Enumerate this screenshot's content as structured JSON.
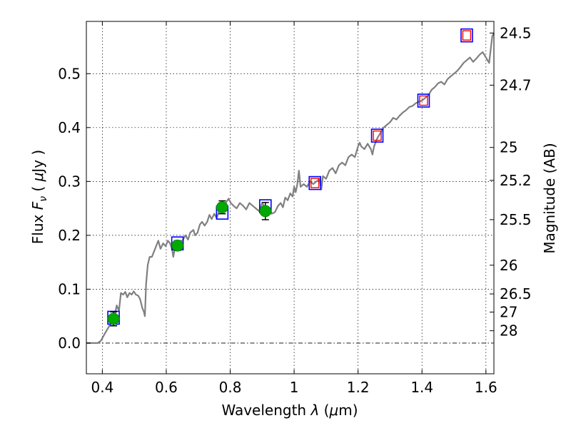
{
  "chart_data": {
    "type": "scatter",
    "xlabel": "Wavelength  λ (μm)",
    "ylabel": "Flux  F_ν  ( μJy )",
    "y2label": "Magnitude (AB)",
    "xlim": [
      0.35,
      1.625
    ],
    "ylim": [
      -0.057,
      0.597
    ],
    "grid": true,
    "x_ticks": [
      0.4,
      0.6,
      0.8,
      1.0,
      1.2,
      1.4,
      1.6
    ],
    "x_tick_labels": [
      "0.4",
      "0.6",
      "0.8",
      "1",
      "1.2",
      "1.4",
      "1.6"
    ],
    "y_ticks": [
      0.0,
      0.1,
      0.2,
      0.3,
      0.4,
      0.5
    ],
    "y_tick_labels": [
      "0.0",
      "0.1",
      "0.2",
      "0.3",
      "0.4",
      "0.5"
    ],
    "mag_ticks": [
      24.5,
      24.7,
      25,
      25.2,
      25.5,
      26,
      26.5,
      27,
      28
    ],
    "mag_tick_labels": [
      "24.5",
      "24.7",
      "25",
      "25.2",
      "25.5",
      "26",
      "26.5",
      "27",
      "28"
    ],
    "series": [
      {
        "kind": "spectrum",
        "color": "#808080",
        "points": [
          [
            0.35,
            0.0
          ],
          [
            0.385,
            0.0
          ],
          [
            0.395,
            0.004
          ],
          [
            0.41,
            0.02
          ],
          [
            0.425,
            0.035
          ],
          [
            0.438,
            0.048
          ],
          [
            0.445,
            0.07
          ],
          [
            0.452,
            0.06
          ],
          [
            0.458,
            0.093
          ],
          [
            0.465,
            0.09
          ],
          [
            0.472,
            0.095
          ],
          [
            0.478,
            0.085
          ],
          [
            0.485,
            0.093
          ],
          [
            0.492,
            0.09
          ],
          [
            0.498,
            0.096
          ],
          [
            0.505,
            0.09
          ],
          [
            0.512,
            0.088
          ],
          [
            0.518,
            0.082
          ],
          [
            0.525,
            0.065
          ],
          [
            0.53,
            0.058
          ],
          [
            0.533,
            0.05
          ],
          [
            0.537,
            0.11
          ],
          [
            0.542,
            0.145
          ],
          [
            0.548,
            0.16
          ],
          [
            0.555,
            0.16
          ],
          [
            0.565,
            0.175
          ],
          [
            0.575,
            0.19
          ],
          [
            0.582,
            0.175
          ],
          [
            0.59,
            0.185
          ],
          [
            0.598,
            0.18
          ],
          [
            0.605,
            0.19
          ],
          [
            0.612,
            0.185
          ],
          [
            0.618,
            0.175
          ],
          [
            0.622,
            0.16
          ],
          [
            0.628,
            0.18
          ],
          [
            0.635,
            0.19
          ],
          [
            0.642,
            0.188
          ],
          [
            0.65,
            0.19
          ],
          [
            0.66,
            0.2
          ],
          [
            0.668,
            0.192
          ],
          [
            0.675,
            0.205
          ],
          [
            0.685,
            0.21
          ],
          [
            0.69,
            0.2
          ],
          [
            0.698,
            0.205
          ],
          [
            0.705,
            0.22
          ],
          [
            0.712,
            0.225
          ],
          [
            0.72,
            0.218
          ],
          [
            0.728,
            0.225
          ],
          [
            0.735,
            0.238
          ],
          [
            0.742,
            0.23
          ],
          [
            0.75,
            0.24
          ],
          [
            0.758,
            0.232
          ],
          [
            0.765,
            0.245
          ],
          [
            0.772,
            0.25
          ],
          [
            0.78,
            0.255
          ],
          [
            0.788,
            0.262
          ],
          [
            0.795,
            0.268
          ],
          [
            0.802,
            0.26
          ],
          [
            0.81,
            0.255
          ],
          [
            0.82,
            0.25
          ],
          [
            0.83,
            0.26
          ],
          [
            0.84,
            0.255
          ],
          [
            0.85,
            0.248
          ],
          [
            0.86,
            0.26
          ],
          [
            0.87,
            0.255
          ],
          [
            0.88,
            0.25
          ],
          [
            0.89,
            0.245
          ],
          [
            0.9,
            0.26
          ],
          [
            0.91,
            0.25
          ],
          [
            0.92,
            0.242
          ],
          [
            0.93,
            0.24
          ],
          [
            0.94,
            0.243
          ],
          [
            0.95,
            0.255
          ],
          [
            0.958,
            0.26
          ],
          [
            0.965,
            0.252
          ],
          [
            0.972,
            0.27
          ],
          [
            0.98,
            0.265
          ],
          [
            0.988,
            0.278
          ],
          [
            0.995,
            0.272
          ],
          [
            1.0,
            0.29
          ],
          [
            1.005,
            0.28
          ],
          [
            1.01,
            0.295
          ],
          [
            1.015,
            0.32
          ],
          [
            1.02,
            0.29
          ],
          [
            1.03,
            0.295
          ],
          [
            1.04,
            0.29
          ],
          [
            1.05,
            0.3
          ],
          [
            1.06,
            0.295
          ],
          [
            1.07,
            0.3
          ],
          [
            1.08,
            0.305
          ],
          [
            1.085,
            0.285
          ],
          [
            1.09,
            0.31
          ],
          [
            1.1,
            0.305
          ],
          [
            1.11,
            0.32
          ],
          [
            1.12,
            0.325
          ],
          [
            1.13,
            0.315
          ],
          [
            1.14,
            0.33
          ],
          [
            1.15,
            0.335
          ],
          [
            1.16,
            0.33
          ],
          [
            1.17,
            0.345
          ],
          [
            1.18,
            0.35
          ],
          [
            1.19,
            0.345
          ],
          [
            1.2,
            0.365
          ],
          [
            1.205,
            0.372
          ],
          [
            1.21,
            0.365
          ],
          [
            1.22,
            0.36
          ],
          [
            1.23,
            0.37
          ],
          [
            1.24,
            0.36
          ],
          [
            1.245,
            0.35
          ],
          [
            1.25,
            0.365
          ],
          [
            1.26,
            0.38
          ],
          [
            1.27,
            0.39
          ],
          [
            1.28,
            0.4
          ],
          [
            1.29,
            0.405
          ],
          [
            1.3,
            0.41
          ],
          [
            1.31,
            0.418
          ],
          [
            1.32,
            0.415
          ],
          [
            1.33,
            0.422
          ],
          [
            1.34,
            0.428
          ],
          [
            1.35,
            0.432
          ],
          [
            1.36,
            0.438
          ],
          [
            1.37,
            0.44
          ],
          [
            1.38,
            0.445
          ],
          [
            1.39,
            0.448
          ],
          [
            1.4,
            0.45
          ],
          [
            1.41,
            0.455
          ],
          [
            1.42,
            0.46
          ],
          [
            1.43,
            0.47
          ],
          [
            1.44,
            0.475
          ],
          [
            1.45,
            0.482
          ],
          [
            1.46,
            0.485
          ],
          [
            1.47,
            0.48
          ],
          [
            1.48,
            0.49
          ],
          [
            1.49,
            0.495
          ],
          [
            1.5,
            0.5
          ],
          [
            1.51,
            0.505
          ],
          [
            1.52,
            0.512
          ],
          [
            1.53,
            0.52
          ],
          [
            1.54,
            0.525
          ],
          [
            1.55,
            0.53
          ],
          [
            1.56,
            0.522
          ],
          [
            1.57,
            0.528
          ],
          [
            1.58,
            0.535
          ],
          [
            1.59,
            0.54
          ],
          [
            1.6,
            0.53
          ],
          [
            1.61,
            0.52
          ],
          [
            1.615,
            0.545
          ],
          [
            1.62,
            0.57
          ],
          [
            1.625,
            0.575
          ]
        ]
      },
      {
        "kind": "model-squares",
        "color": "#0000ff",
        "x": [
          0.435,
          0.635,
          0.775,
          0.91,
          1.065,
          1.26,
          1.405,
          1.54
        ],
        "y": [
          0.047,
          0.185,
          0.242,
          0.254,
          0.297,
          0.385,
          0.45,
          0.571
        ]
      },
      {
        "kind": "inner-squares",
        "color": "#ff0000",
        "x": [
          1.065,
          1.26,
          1.405,
          1.54
        ],
        "y": [
          0.297,
          0.385,
          0.45,
          0.571
        ]
      },
      {
        "kind": "observed",
        "color": "#00aa00",
        "x": [
          0.435,
          0.635,
          0.775,
          0.91
        ],
        "y": [
          0.045,
          0.181,
          0.252,
          0.245
        ],
        "yerr": [
          0.013,
          0.009,
          0.012,
          0.016
        ]
      }
    ]
  }
}
